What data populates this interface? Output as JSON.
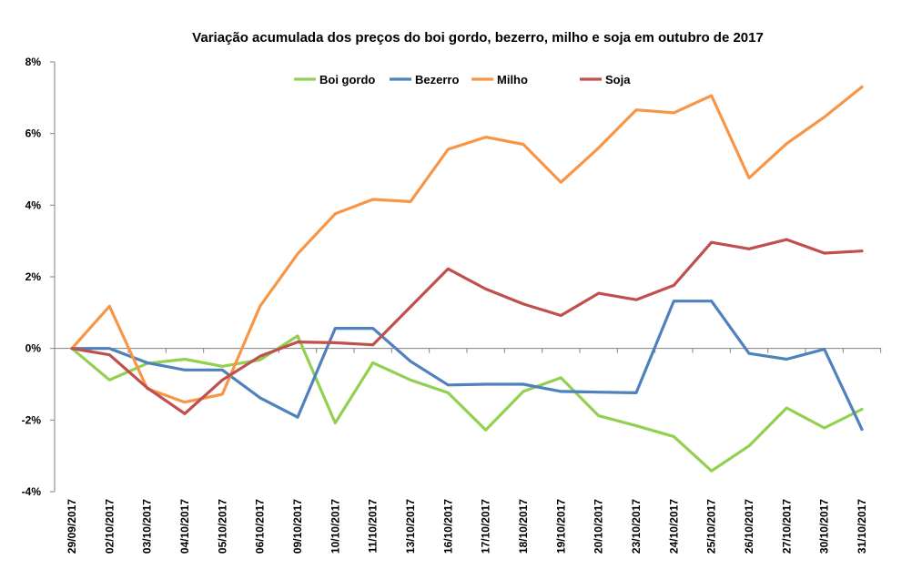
{
  "chart_data": {
    "type": "line",
    "title": "Variação acumulada dos preços do boi gordo, bezerro, milho e soja em outubro de 2017",
    "xlabel": "",
    "ylabel": "",
    "ylim": [
      -4,
      8
    ],
    "y_ticks": [
      -4,
      -2,
      0,
      2,
      4,
      6,
      8
    ],
    "y_tick_labels": [
      "-4%",
      "-2%",
      "0%",
      "2%",
      "4%",
      "6%",
      "8%"
    ],
    "legend_position": "top",
    "grid": false,
    "categories": [
      "29/09/2017",
      "02/10/2017",
      "03/10/2017",
      "04/10/2017",
      "05/10/2017",
      "06/10/2017",
      "09/10/2017",
      "10/10/2017",
      "11/10/2017",
      "13/10/2017",
      "16/10/2017",
      "17/10/2017",
      "18/10/2017",
      "19/10/2017",
      "20/10/2017",
      "23/10/2017",
      "24/10/2017",
      "25/10/2017",
      "26/10/2017",
      "27/10/2017",
      "30/10/2017",
      "31/10/2017"
    ],
    "series": [
      {
        "name": "Boi gordo",
        "color": "#92d050",
        "values": [
          0,
          -0.88,
          -0.42,
          -0.3,
          -0.5,
          -0.32,
          0.35,
          -2.08,
          -0.4,
          -0.88,
          -1.24,
          -2.28,
          -1.2,
          -0.82,
          -1.88,
          -2.16,
          -2.46,
          -3.42,
          -2.72,
          -1.66,
          -2.22,
          -1.7
        ]
      },
      {
        "name": "Bezerro",
        "color": "#4f81bd",
        "values": [
          0,
          0,
          -0.4,
          -0.6,
          -0.6,
          -1.38,
          -1.92,
          0.56,
          0.56,
          -0.36,
          -1.02,
          -1.0,
          -1.0,
          -1.2,
          -1.22,
          -1.24,
          1.32,
          1.32,
          -0.14,
          -0.3,
          -0.02,
          -2.26
        ]
      },
      {
        "name": "Milho",
        "color": "#f79646",
        "values": [
          0,
          1.18,
          -1.12,
          -1.5,
          -1.28,
          1.18,
          2.64,
          3.76,
          4.16,
          4.1,
          5.56,
          5.9,
          5.7,
          4.64,
          5.6,
          6.66,
          6.58,
          7.06,
          4.76,
          5.72,
          6.46,
          7.3
        ]
      },
      {
        "name": "Soja",
        "color": "#c0504d",
        "values": [
          0,
          -0.18,
          -1.1,
          -1.82,
          -0.88,
          -0.22,
          0.18,
          0.16,
          0.1,
          1.16,
          2.22,
          1.66,
          1.24,
          0.92,
          1.54,
          1.36,
          1.76,
          2.96,
          2.78,
          3.04,
          2.66,
          2.72
        ]
      }
    ]
  }
}
